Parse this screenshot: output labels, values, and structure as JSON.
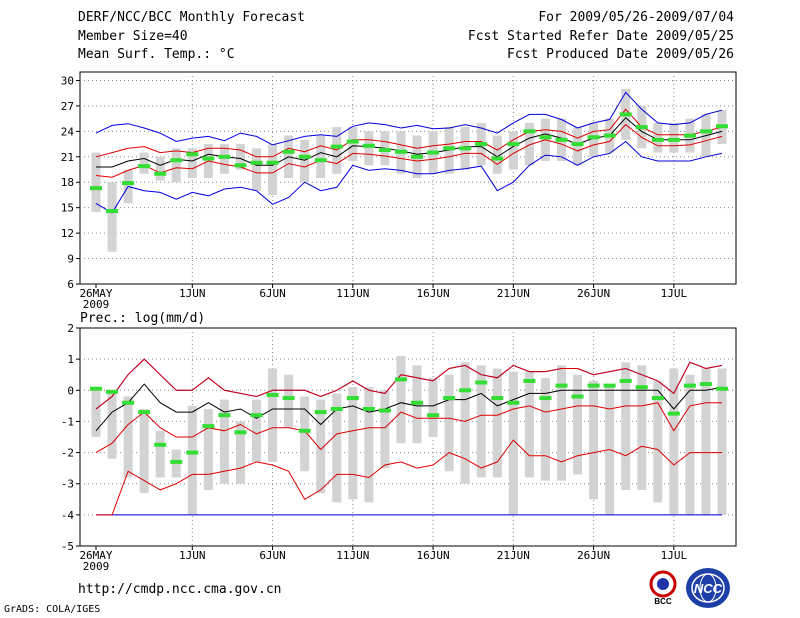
{
  "header": {
    "line1_left": "DERF/NCC/BCC Monthly Forecast",
    "line2_left": "Member Size=40",
    "line3_left": "Mean Surf. Temp.: °C",
    "line1_right": "For 2009/05/26-2009/07/04",
    "line2_right": "Fcst Started Refer Date 2009/05/25",
    "line3_right": "Fcst Produced Date 2009/05/26"
  },
  "footer": {
    "url": "http://cmdp.ncc.cma.gov.cn",
    "grads": "GrADS: COLA/IGES",
    "logo_bcc": "BCC",
    "logo_ncc": "NCC"
  },
  "colors": {
    "box": "#d3d3d3",
    "median": "#33dd33",
    "mean": "#000000",
    "spread": "#dd0000",
    "envelope": "#0000dd",
    "grid": "#888888"
  },
  "chart_data": [
    {
      "type": "box",
      "title": "Mean Surf. Temp.: °C",
      "ylim": [
        6,
        31
      ],
      "yticks": [
        6,
        9,
        12,
        15,
        18,
        21,
        24,
        27,
        30
      ],
      "x_range": [
        0,
        39
      ],
      "xticks": [
        {
          "day": 0,
          "label": "26MAY",
          "sub": "2009"
        },
        {
          "day": 6,
          "label": "1JUN"
        },
        {
          "day": 11,
          "label": "6JUN"
        },
        {
          "day": 16,
          "label": "11JUN"
        },
        {
          "day": 21,
          "label": "16JUN"
        },
        {
          "day": 26,
          "label": "21JUN"
        },
        {
          "day": 31,
          "label": "26JUN"
        },
        {
          "day": 36,
          "label": "1JUL"
        }
      ],
      "box_low": [
        14.5,
        9.8,
        15.5,
        19.0,
        18.2,
        18.0,
        18.5,
        18.5,
        19.0,
        19.5,
        17.0,
        16.5,
        18.5,
        18.0,
        18.5,
        19.0,
        20.5,
        20.0,
        20.0,
        19.0,
        18.5,
        19.0,
        19.0,
        19.5,
        20.0,
        19.0,
        19.5,
        20.0,
        20.5,
        20.5,
        20.0,
        21.0,
        21.5,
        23.0,
        22.0,
        21.5,
        21.5,
        21.5,
        21.0,
        22.5
      ],
      "box_high": [
        21.5,
        18.0,
        19.5,
        21.5,
        21.0,
        22.0,
        22.0,
        22.5,
        22.5,
        22.5,
        22.0,
        22.5,
        23.5,
        23.0,
        23.5,
        24.5,
        24.5,
        24.0,
        24.0,
        24.0,
        23.5,
        24.0,
        24.5,
        24.5,
        25.0,
        23.5,
        24.0,
        25.0,
        25.5,
        25.5,
        24.5,
        25.0,
        25.5,
        29.0,
        27.0,
        25.0,
        25.0,
        25.5,
        26.0,
        26.5
      ],
      "median": [
        17.3,
        14.6,
        17.9,
        19.9,
        19.0,
        20.6,
        21.3,
        20.8,
        21.0,
        20.0,
        20.3,
        20.3,
        21.6,
        21.0,
        20.6,
        22.2,
        22.8,
        22.3,
        21.8,
        21.6,
        21.0,
        21.5,
        22.0,
        22.0,
        22.5,
        20.8,
        22.5,
        24.0,
        23.3,
        23.0,
        22.5,
        23.3,
        23.5,
        26.0,
        24.5,
        23.0,
        23.0,
        23.5,
        24.0,
        24.6
      ],
      "mean": [
        19.8,
        19.8,
        20.5,
        20.8,
        20.0,
        20.7,
        20.5,
        21.3,
        21.0,
        20.8,
        20.0,
        20.0,
        21.0,
        20.6,
        21.5,
        21.0,
        22.3,
        22.2,
        22.0,
        21.7,
        21.3,
        21.5,
        21.8,
        22.2,
        22.2,
        21.0,
        22.2,
        23.2,
        23.7,
        23.2,
        22.5,
        23.2,
        23.5,
        25.6,
        24.0,
        23.0,
        23.0,
        23.0,
        23.5,
        24.0
      ],
      "upper_sd": [
        21.0,
        21.5,
        22.0,
        22.2,
        21.5,
        21.7,
        21.5,
        22.0,
        22.0,
        21.8,
        21.0,
        21.0,
        22.0,
        21.6,
        22.3,
        21.8,
        23.0,
        23.0,
        22.8,
        22.4,
        22.0,
        22.3,
        22.5,
        22.8,
        22.8,
        21.8,
        23.0,
        24.0,
        24.2,
        24.0,
        23.2,
        24.0,
        24.2,
        26.6,
        24.5,
        23.6,
        23.6,
        23.6,
        24.0,
        24.5
      ],
      "lower_sd": [
        18.8,
        18.6,
        19.4,
        20.0,
        19.1,
        19.7,
        19.6,
        20.5,
        20.1,
        19.8,
        19.1,
        19.1,
        20.2,
        19.8,
        20.6,
        20.2,
        21.4,
        21.3,
        21.1,
        20.8,
        20.5,
        20.7,
        21.0,
        21.4,
        21.4,
        20.1,
        21.4,
        22.4,
        23.0,
        22.5,
        21.7,
        22.4,
        22.8,
        24.8,
        23.3,
        22.3,
        22.3,
        22.4,
        22.9,
        23.4
      ],
      "max_env": [
        23.8,
        24.7,
        24.9,
        24.4,
        23.8,
        22.8,
        23.2,
        23.4,
        22.9,
        23.8,
        23.4,
        22.4,
        22.9,
        23.4,
        23.6,
        23.4,
        24.6,
        25.0,
        24.8,
        24.4,
        24.7,
        24.3,
        24.4,
        24.8,
        24.4,
        23.8,
        25.0,
        26.0,
        26.0,
        25.4,
        24.4,
        25.0,
        25.4,
        28.6,
        26.6,
        25.0,
        24.8,
        25.0,
        26.0,
        26.5
      ],
      "min_env": [
        15.5,
        14.4,
        17.5,
        17.0,
        16.8,
        16.0,
        16.8,
        16.4,
        17.2,
        17.4,
        17.0,
        15.4,
        16.2,
        18.0,
        17.0,
        17.4,
        20.0,
        19.4,
        19.6,
        19.4,
        19.0,
        19.0,
        19.4,
        19.6,
        19.9,
        17.0,
        18.0,
        20.0,
        21.2,
        21.0,
        20.0,
        21.0,
        21.4,
        22.8,
        21.0,
        20.5,
        20.5,
        20.5,
        21.0,
        21.4
      ]
    },
    {
      "type": "box",
      "title": "Prec.: log(mm/d)",
      "ylim": [
        -5,
        2
      ],
      "yticks": [
        -5,
        -4,
        -3,
        -2,
        -1,
        0,
        1,
        2
      ],
      "x_range": [
        0,
        39
      ],
      "xticks": [
        {
          "day": 0,
          "label": "26MAY",
          "sub": "2009"
        },
        {
          "day": 6,
          "label": "1JUN"
        },
        {
          "day": 11,
          "label": "6JUN"
        },
        {
          "day": 16,
          "label": "11JUN"
        },
        {
          "day": 21,
          "label": "16JUN"
        },
        {
          "day": 26,
          "label": "21JUN"
        },
        {
          "day": 31,
          "label": "26JUN"
        },
        {
          "day": 36,
          "label": "1JUL"
        }
      ],
      "box_low": [
        -1.5,
        -2.2,
        -2.8,
        -3.3,
        -2.8,
        -2.8,
        -4.0,
        -3.2,
        -3.0,
        -3.0,
        -2.3,
        -2.3,
        -1.2,
        -2.6,
        -3.3,
        -3.6,
        -3.5,
        -3.6,
        -2.5,
        -1.7,
        -1.7,
        -1.5,
        -2.6,
        -3.0,
        -2.8,
        -2.8,
        -4.0,
        -2.8,
        -2.9,
        -2.9,
        -2.7,
        -3.5,
        -4.0,
        -3.2,
        -3.2,
        -3.6,
        -4.0,
        -4.0,
        -4.0,
        -4.0
      ],
      "box_high": [
        0.0,
        0.0,
        -0.2,
        -0.6,
        -1.3,
        -1.9,
        -0.5,
        -0.6,
        -0.3,
        -1.0,
        -0.3,
        0.7,
        0.5,
        -0.2,
        -0.3,
        -0.1,
        0.1,
        0.1,
        0.0,
        1.1,
        0.8,
        0.4,
        0.5,
        0.9,
        0.8,
        0.7,
        0.6,
        0.6,
        0.4,
        0.8,
        0.5,
        0.3,
        0.1,
        0.9,
        0.8,
        0.3,
        0.7,
        0.5,
        0.7,
        0.7
      ],
      "median": [
        0.05,
        -0.05,
        -0.4,
        -0.7,
        -1.75,
        -2.3,
        -2.0,
        -1.15,
        -0.8,
        -1.35,
        -0.8,
        -0.15,
        -0.25,
        -1.3,
        -0.7,
        -0.6,
        -0.25,
        -0.6,
        -0.65,
        0.35,
        -0.4,
        -0.8,
        -0.25,
        0.0,
        0.25,
        -0.25,
        -0.4,
        0.3,
        -0.25,
        0.15,
        -0.2,
        0.15,
        0.15,
        0.3,
        0.1,
        -0.25,
        -0.75,
        0.15,
        0.2,
        0.05
      ],
      "mean": [
        -1.3,
        -0.7,
        -0.4,
        0.2,
        -0.4,
        -0.7,
        -0.7,
        -0.4,
        -0.7,
        -0.6,
        -0.9,
        -0.6,
        -0.6,
        -0.6,
        -1.1,
        -0.6,
        -0.5,
        -0.7,
        -0.6,
        -0.4,
        -0.5,
        -0.5,
        -0.3,
        -0.3,
        -0.1,
        -0.5,
        -0.3,
        -0.1,
        -0.1,
        0.0,
        0.0,
        0.0,
        0.0,
        0.0,
        0.0,
        0.0,
        -0.6,
        0.0,
        0.0,
        0.1
      ],
      "upper_sd": [
        -0.6,
        -0.2,
        0.5,
        1.0,
        0.5,
        0.0,
        0.0,
        0.4,
        0.0,
        -0.1,
        -0.2,
        0.0,
        0.0,
        0.0,
        -0.2,
        0.0,
        0.3,
        0.0,
        -0.1,
        0.5,
        0.4,
        0.3,
        0.7,
        0.8,
        0.5,
        0.4,
        0.8,
        0.6,
        0.6,
        0.7,
        0.7,
        0.5,
        0.6,
        0.7,
        0.5,
        0.3,
        -0.1,
        0.9,
        0.7,
        0.8
      ],
      "lower_sd": [
        -2.0,
        -1.7,
        -1.1,
        -0.7,
        -1.2,
        -1.5,
        -1.5,
        -1.2,
        -1.3,
        -1.1,
        -1.4,
        -1.2,
        -1.2,
        -1.3,
        -1.9,
        -1.4,
        -1.3,
        -1.2,
        -1.2,
        -0.7,
        -0.9,
        -0.9,
        -0.9,
        -1.0,
        -0.8,
        -0.8,
        -0.6,
        -0.5,
        -0.7,
        -0.6,
        -0.5,
        -0.5,
        -0.6,
        -0.5,
        -0.5,
        -0.4,
        -1.3,
        -0.5,
        -0.4,
        -0.4
      ],
      "max_env": [
        -0.6,
        -0.2,
        0.5,
        1.0,
        0.5,
        0.0,
        0.0,
        0.4,
        0.0,
        -0.1,
        -0.2,
        0.0,
        0.0,
        0.0,
        -0.2,
        0.0,
        0.3,
        0.0,
        -0.1,
        0.5,
        0.4,
        0.3,
        0.7,
        0.8,
        0.5,
        0.4,
        0.8,
        0.6,
        0.6,
        0.7,
        0.7,
        0.5,
        0.6,
        0.7,
        0.5,
        0.3,
        -0.1,
        0.9,
        0.7,
        0.8
      ],
      "min_env": [
        -4.0,
        -4.0,
        -4.0,
        -4.0,
        -4.0,
        -4.0,
        -4.0,
        -4.0,
        -4.0,
        -4.0,
        -4.0,
        -4.0,
        -4.0,
        -4.0,
        -4.0,
        -4.0,
        -4.0,
        -4.0,
        -4.0,
        -4.0,
        -4.0,
        -4.0,
        -4.0,
        -4.0,
        -4.0,
        -4.0,
        -4.0,
        -4.0,
        -4.0,
        -4.0,
        -4.0,
        -4.0,
        -4.0,
        -4.0,
        -4.0,
        -4.0,
        -4.0,
        -4.0,
        -4.0,
        -4.0
      ],
      "lower2": [
        -4.0,
        -4.0,
        -2.6,
        -2.9,
        -3.2,
        -3.0,
        -2.7,
        -2.7,
        -2.6,
        -2.5,
        -2.3,
        -2.4,
        -2.6,
        -3.5,
        -3.2,
        -2.7,
        -2.7,
        -2.8,
        -2.4,
        -2.3,
        -2.5,
        -2.4,
        -2.0,
        -2.2,
        -2.5,
        -2.3,
        -1.6,
        -2.1,
        -2.1,
        -2.3,
        -2.1,
        -2.0,
        -1.9,
        -2.1,
        -1.8,
        -1.9,
        -2.4,
        -2.0,
        -2.0,
        -2.0
      ]
    }
  ]
}
